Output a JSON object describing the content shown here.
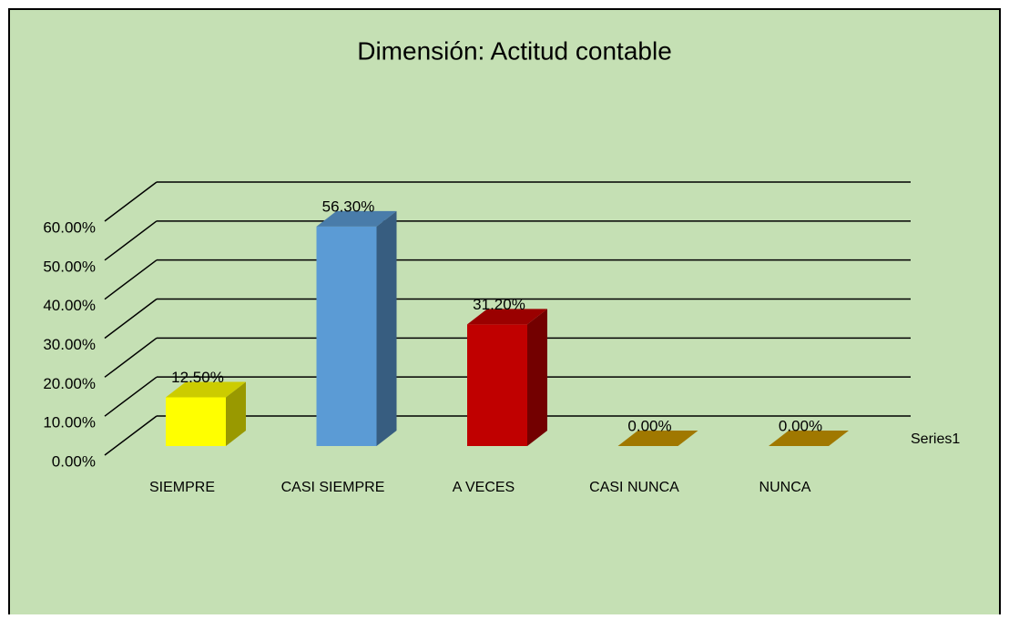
{
  "chart_data": {
    "type": "bar3d",
    "title": "Dimensión: Actitud contable",
    "categories": [
      "SIEMPRE",
      "CASI SIEMPRE",
      "A VECES",
      "CASI NUNCA",
      "NUNCA"
    ],
    "series": [
      {
        "name": "Series1",
        "colors": [
          "#ffff00",
          "#5b9bd5",
          "#c00000",
          "#c89600",
          "#c89600"
        ],
        "values": [
          12.5,
          56.3,
          31.2,
          0,
          0
        ],
        "value_labels": [
          "12.50%",
          "56.30%",
          "31.20%",
          "0.00%",
          "0.00%"
        ]
      }
    ],
    "ylim": [
      0,
      60
    ],
    "yticks": [
      {
        "value": 0,
        "label": "0.00%"
      },
      {
        "value": 10,
        "label": "10.00%"
      },
      {
        "value": 20,
        "label": "20.00%"
      },
      {
        "value": 30,
        "label": "30.00%"
      },
      {
        "value": 40,
        "label": "40.00%"
      },
      {
        "value": 50,
        "label": "50.00%"
      },
      {
        "value": 60,
        "label": "60.00%"
      }
    ],
    "grid": true
  }
}
